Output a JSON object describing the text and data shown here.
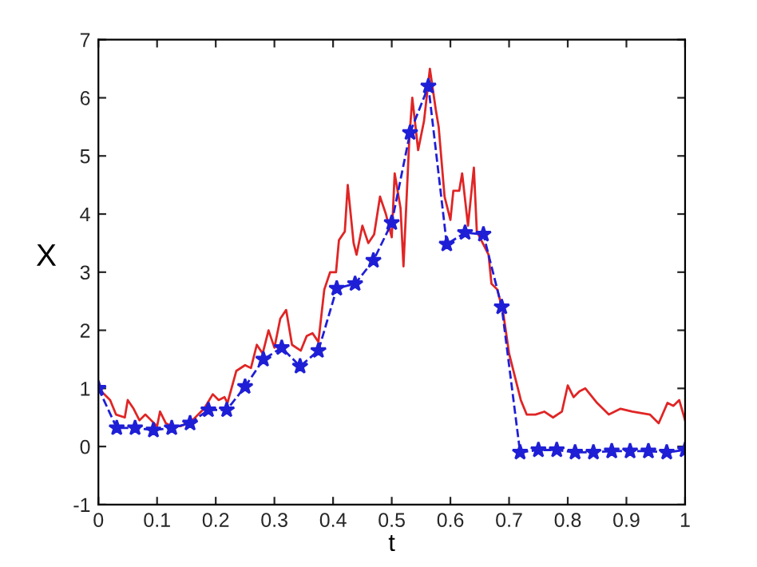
{
  "chart_data": {
    "type": "line",
    "xlabel": "t",
    "ylabel": "X",
    "xlim": [
      0,
      1
    ],
    "ylim": [
      -1,
      7
    ],
    "xticks": [
      0,
      0.1,
      0.2,
      0.3,
      0.4,
      0.5,
      0.6,
      0.7,
      0.8,
      0.9,
      1
    ],
    "yticks": [
      -1,
      0,
      1,
      2,
      3,
      4,
      5,
      6,
      7
    ],
    "grid": false,
    "legend": false,
    "series": [
      {
        "color": "#e02525",
        "marker": "none",
        "line_style": "solid",
        "x": [
          0,
          0.02,
          0.03,
          0.045,
          0.05,
          0.06,
          0.07,
          0.08,
          0.09,
          0.1,
          0.105,
          0.115,
          0.125,
          0.14,
          0.16,
          0.18,
          0.195,
          0.205,
          0.215,
          0.22,
          0.235,
          0.25,
          0.26,
          0.27,
          0.28,
          0.29,
          0.3,
          0.31,
          0.32,
          0.33,
          0.345,
          0.355,
          0.365,
          0.375,
          0.385,
          0.395,
          0.405,
          0.41,
          0.42,
          0.425,
          0.435,
          0.44,
          0.45,
          0.46,
          0.47,
          0.48,
          0.49,
          0.5,
          0.505,
          0.515,
          0.52,
          0.53,
          0.535,
          0.545,
          0.555,
          0.565,
          0.575,
          0.58,
          0.59,
          0.6,
          0.605,
          0.615,
          0.62,
          0.63,
          0.64,
          0.645,
          0.655,
          0.665,
          0.67,
          0.68,
          0.69,
          0.7,
          0.71,
          0.72,
          0.73,
          0.745,
          0.76,
          0.775,
          0.79,
          0.8,
          0.81,
          0.82,
          0.83,
          0.85,
          0.87,
          0.89,
          0.91,
          0.94,
          0.955,
          0.97,
          0.98,
          0.99,
          1.0
        ],
        "values": [
          1.0,
          0.8,
          0.55,
          0.5,
          0.8,
          0.65,
          0.45,
          0.55,
          0.45,
          0.35,
          0.6,
          0.4,
          0.35,
          0.35,
          0.45,
          0.65,
          0.9,
          0.8,
          0.85,
          0.75,
          1.3,
          1.4,
          1.35,
          1.75,
          1.6,
          2.0,
          1.7,
          2.2,
          2.35,
          1.75,
          1.65,
          1.9,
          1.95,
          1.8,
          2.7,
          3.0,
          3.0,
          3.55,
          3.7,
          4.5,
          3.5,
          3.3,
          3.8,
          3.5,
          3.65,
          4.3,
          4.0,
          3.6,
          4.7,
          4.1,
          3.1,
          5.3,
          6.0,
          5.1,
          5.6,
          6.5,
          5.8,
          5.5,
          4.3,
          3.9,
          4.4,
          4.4,
          4.7,
          3.8,
          4.8,
          3.7,
          3.5,
          3.3,
          2.8,
          2.7,
          2.3,
          1.6,
          1.2,
          0.8,
          0.55,
          0.55,
          0.6,
          0.5,
          0.6,
          1.05,
          0.85,
          0.95,
          1.0,
          0.75,
          0.55,
          0.65,
          0.6,
          0.55,
          0.4,
          0.75,
          0.7,
          0.8,
          0.45
        ]
      },
      {
        "color": "#1f1fd6",
        "marker": "star",
        "line_style": "dashed",
        "x": [
          0,
          0.03125,
          0.0625,
          0.09375,
          0.125,
          0.15625,
          0.1875,
          0.21875,
          0.25,
          0.28125,
          0.3125,
          0.34375,
          0.375,
          0.40625,
          0.4375,
          0.46875,
          0.5,
          0.53125,
          0.5625,
          0.59375,
          0.625,
          0.65625,
          0.6875,
          0.71875,
          0.75,
          0.78125,
          0.8125,
          0.84375,
          0.875,
          0.90625,
          0.9375,
          0.96875,
          1
        ],
        "values": [
          1.0,
          0.32,
          0.32,
          0.28,
          0.32,
          0.4,
          0.63,
          0.63,
          1.03,
          1.5,
          1.7,
          1.38,
          1.65,
          2.72,
          2.8,
          3.2,
          3.85,
          5.4,
          6.2,
          3.48,
          3.68,
          3.65,
          2.4,
          -0.1,
          -0.06,
          -0.06,
          -0.1,
          -0.1,
          -0.08,
          -0.08,
          -0.08,
          -0.1,
          -0.06
        ]
      }
    ]
  }
}
